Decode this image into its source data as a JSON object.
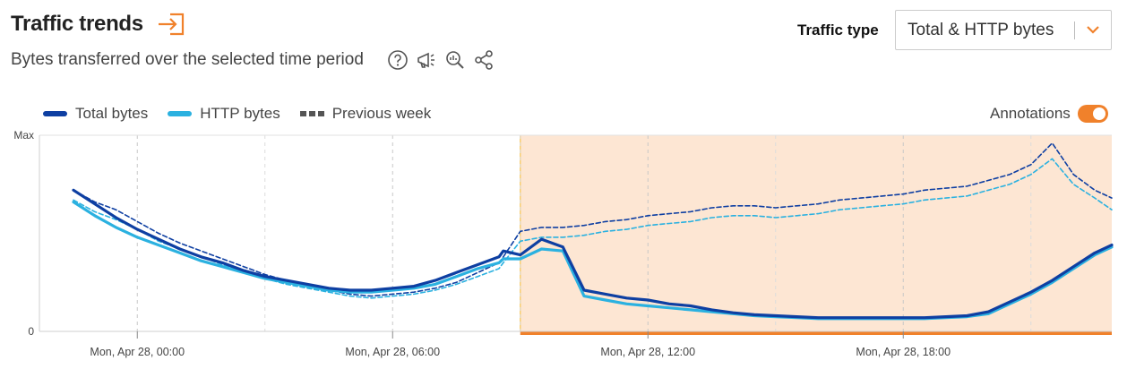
{
  "header": {
    "title": "Traffic trends",
    "subtitle": "Bytes transferred over the selected time period",
    "title_icon": "open-panel-icon",
    "subtitle_icons": [
      "help-icon",
      "megaphone-icon",
      "zoom-chart-icon",
      "share-icon"
    ]
  },
  "traffic_type": {
    "label": "Traffic type",
    "selected": "Total & HTTP bytes"
  },
  "annotations": {
    "label": "Annotations",
    "enabled": true
  },
  "colors": {
    "total": "#0e3fa2",
    "http": "#2bb1e0",
    "previous": "#555555",
    "accent": "#f0812b",
    "annotation_fill": "#fde6d3"
  },
  "chart_data": {
    "type": "line",
    "ylim": [
      0,
      100
    ],
    "y_ticks": [
      "0",
      "Max"
    ],
    "x_ticks": [
      "Mon, Apr 28, 00:00",
      "Mon, Apr 28, 06:00",
      "Mon, Apr 28, 12:00",
      "Mon, Apr 28, 18:00"
    ],
    "x_range_hours": [
      -2.3,
      22.9
    ],
    "legend": "top-left",
    "grid": "dashed vertical",
    "annotation_region_hours": [
      9.0,
      22.9
    ],
    "series": [
      {
        "name": "Total bytes",
        "style": "solid",
        "color_key": "total",
        "x": [
          -1.5,
          -1,
          -0.5,
          0,
          0.5,
          1,
          1.5,
          2,
          2.5,
          3,
          3.5,
          4,
          4.5,
          5,
          5.5,
          6,
          6.5,
          7,
          7.5,
          8,
          8.5,
          8.6,
          9,
          9.5,
          10,
          10.5,
          11,
          11.5,
          12,
          12.5,
          13,
          13.5,
          14,
          14.5,
          15,
          15.5,
          16,
          16.5,
          17,
          17.5,
          18,
          18.5,
          19,
          19.5,
          20,
          20.5,
          21,
          21.5,
          22,
          22.5,
          22.9
        ],
        "values": [
          72,
          65,
          58,
          52,
          47,
          42,
          38,
          35,
          31,
          28,
          26,
          24,
          22,
          21,
          21,
          22,
          23,
          26,
          30,
          34,
          38,
          41,
          39,
          47,
          43,
          21,
          19,
          17,
          16,
          14,
          13,
          11,
          9.5,
          8.5,
          8,
          7.5,
          7,
          7,
          7,
          7,
          7,
          7,
          7.5,
          8,
          10,
          15,
          20,
          26,
          33,
          40,
          44
        ]
      },
      {
        "name": "HTTP bytes",
        "style": "solid",
        "color_key": "http",
        "x": [
          -1.5,
          -1,
          -0.5,
          0,
          0.5,
          1,
          1.5,
          2,
          2.5,
          3,
          3.5,
          4,
          4.5,
          5,
          5.5,
          6,
          6.5,
          7,
          7.5,
          8,
          8.5,
          8.6,
          9,
          9.5,
          10,
          10.5,
          11,
          11.5,
          12,
          12.5,
          13,
          13.5,
          14,
          14.5,
          15,
          15.5,
          16,
          16.5,
          17,
          17.5,
          18,
          18.5,
          19,
          19.5,
          20,
          20.5,
          21,
          21.5,
          22,
          22.5,
          22.9
        ],
        "values": [
          66,
          59,
          53,
          48,
          44,
          40,
          36,
          33,
          30,
          27,
          25,
          23,
          21,
          20,
          20,
          21,
          22,
          24,
          28,
          32,
          35,
          37,
          37,
          42,
          41,
          18,
          16,
          14,
          13,
          12,
          11,
          10,
          9,
          8,
          7.5,
          7,
          6.5,
          6.5,
          6.5,
          6.5,
          6.5,
          6.5,
          7,
          7.5,
          9,
          14,
          19,
          25,
          32,
          39,
          43
        ]
      },
      {
        "name": "Previous week",
        "style": "dashed",
        "color_key": "total",
        "x": [
          -1.5,
          -1,
          -0.5,
          0,
          0.5,
          1,
          1.5,
          2,
          2.5,
          3,
          3.5,
          4,
          4.5,
          5,
          5.5,
          6,
          6.5,
          7,
          7.5,
          8,
          8.5,
          8.6,
          9,
          9.5,
          10,
          10.5,
          11,
          11.5,
          12,
          12.5,
          13,
          13.5,
          14,
          14.5,
          15,
          15.5,
          16,
          16.5,
          17,
          17.5,
          18,
          18.5,
          19,
          19.5,
          20,
          20.5,
          21,
          21.5,
          22,
          22.5,
          22.9
        ],
        "values": [
          72,
          66,
          62,
          56,
          50,
          45,
          41,
          37,
          33,
          29,
          26,
          23,
          21,
          19,
          18,
          19,
          20,
          22,
          25,
          30,
          35,
          38,
          51,
          53,
          53,
          54,
          56,
          57,
          59,
          60,
          61,
          63,
          64,
          64,
          63,
          64,
          65,
          67,
          68,
          69,
          70,
          72,
          73,
          74,
          77,
          80,
          85,
          96,
          80,
          72,
          68
        ]
      },
      {
        "name": "Previous week",
        "style": "dashed",
        "color_key": "http",
        "x": [
          -1.5,
          -1,
          -0.5,
          0,
          0.5,
          1,
          1.5,
          2,
          2.5,
          3,
          3.5,
          4,
          4.5,
          5,
          5.5,
          6,
          6.5,
          7,
          7.5,
          8,
          8.5,
          8.6,
          9,
          9.5,
          10,
          10.5,
          11,
          11.5,
          12,
          12.5,
          13,
          13.5,
          14,
          14.5,
          15,
          15.5,
          16,
          16.5,
          17,
          17.5,
          18,
          18.5,
          19,
          19.5,
          20,
          20.5,
          21,
          21.5,
          22,
          22.5,
          22.9
        ],
        "values": [
          67,
          61,
          57,
          52,
          46,
          42,
          38,
          34,
          31,
          27,
          24,
          22,
          20,
          18,
          17,
          18,
          19,
          21,
          24,
          28,
          32,
          35,
          46,
          48,
          48,
          49,
          51,
          52,
          54,
          55,
          56,
          58,
          59,
          59,
          58,
          59,
          60,
          62,
          63,
          64,
          65,
          67,
          68,
          69,
          72,
          75,
          80,
          88,
          75,
          68,
          62
        ]
      }
    ]
  }
}
